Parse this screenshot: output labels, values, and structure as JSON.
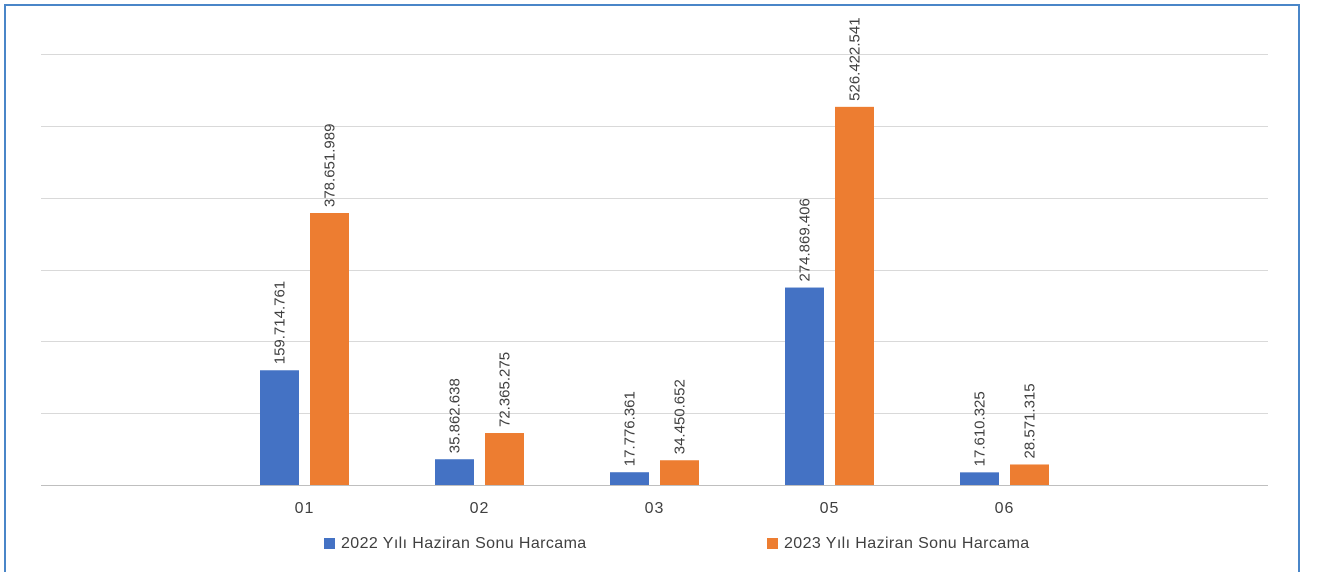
{
  "chart_data": {
    "type": "bar",
    "title": "",
    "xlabel": "",
    "ylabel": "",
    "categories": [
      "01",
      "02",
      "03",
      "05",
      "06"
    ],
    "series": [
      {
        "name": "2022 Yılı Haziran Sonu Harcama",
        "color": "#4472c4",
        "values": [
          159714761,
          35862638,
          17776361,
          274869406,
          17610325
        ],
        "labels": [
          "159.714.761",
          "35.862.638",
          "17.776.361",
          "274.869.406",
          "17.610.325"
        ]
      },
      {
        "name": "2023 Yılı Haziran Sonu Harcama",
        "color": "#ed7d31",
        "values": [
          378651989,
          72365275,
          34450652,
          526422541,
          28571315
        ],
        "labels": [
          "378.651.989",
          "72.365.275",
          "34.450.652",
          "526.422.541",
          "28.571.315"
        ]
      }
    ],
    "ylim": [
      0,
      600000000
    ],
    "gridlines": true,
    "y_tick_labels_visible": false,
    "legend_position": "bottom"
  }
}
